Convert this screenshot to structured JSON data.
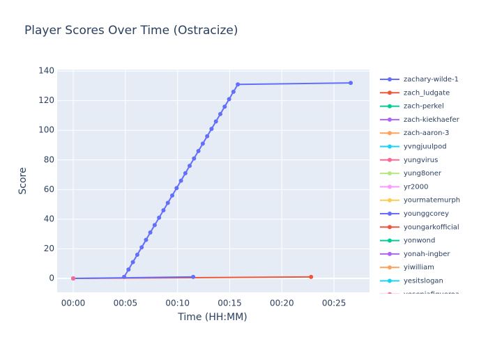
{
  "chart_data": {
    "type": "line",
    "title": "Player Scores Over Time (Ostracize)",
    "x_label": "Time (HH:MM)",
    "y_label": "Score",
    "xlim": [
      -1.54,
      28.4
    ],
    "ylim": [
      -9.4,
      141
    ],
    "xticks": [
      {
        "value": 0,
        "label": "00:00"
      },
      {
        "value": 5,
        "label": "00:05"
      },
      {
        "value": 10,
        "label": "00:10"
      },
      {
        "value": 15,
        "label": "00:15"
      },
      {
        "value": 20,
        "label": "00:20"
      },
      {
        "value": 25,
        "label": "00:25"
      }
    ],
    "yticks": [
      0,
      20,
      40,
      60,
      80,
      100,
      120,
      140
    ],
    "grid": true,
    "legend": "right",
    "series": [
      {
        "name": "zachary-wilde-1",
        "color": "#636efa",
        "x": [
          4.88,
          5.3,
          5.72,
          6.14,
          6.56,
          6.98,
          7.39,
          7.81,
          8.23,
          8.65,
          9.07,
          9.49,
          9.91,
          10.33,
          10.75,
          11.16,
          11.58,
          12.0,
          12.42,
          12.84,
          13.26,
          13.68,
          14.1,
          14.52,
          14.94,
          15.36,
          15.78,
          26.6
        ],
        "values": [
          1,
          6,
          11,
          16,
          21,
          26,
          31,
          36,
          41,
          46,
          51,
          56,
          61,
          66,
          71,
          76,
          81,
          86,
          91,
          96,
          101,
          106,
          111,
          116,
          121,
          126,
          131,
          132
        ]
      },
      {
        "name": "zach_ludgate",
        "color": "#ef553b",
        "x": [
          0,
          22.8
        ],
        "values": [
          0,
          1
        ]
      },
      {
        "name": "zach-perkel",
        "color": "#00cc96",
        "x": [
          0
        ],
        "values": [
          0
        ]
      },
      {
        "name": "zach-kiekhaefer",
        "color": "#ab63fa",
        "x": [
          0
        ],
        "values": [
          0
        ]
      },
      {
        "name": "zach-aaron-3",
        "color": "#ffa15a",
        "x": [
          0
        ],
        "values": [
          0
        ]
      },
      {
        "name": "yvngjuulpod",
        "color": "#19d3f3",
        "x": [
          0
        ],
        "values": [
          0
        ]
      },
      {
        "name": "yungvirus",
        "color": "#ff6692",
        "x": [
          0
        ],
        "values": [
          0
        ]
      },
      {
        "name": "yung8oner",
        "color": "#b6e880",
        "x": [
          0
        ],
        "values": [
          0
        ]
      },
      {
        "name": "yr2000",
        "color": "#ff97ff",
        "x": [
          0
        ],
        "values": [
          0
        ]
      },
      {
        "name": "yourmatemurph",
        "color": "#fecb52",
        "x": [
          0
        ],
        "values": [
          0
        ]
      },
      {
        "name": "younggcorey",
        "color": "#636efa",
        "x": [
          0,
          11.5
        ],
        "values": [
          0,
          1
        ]
      },
      {
        "name": "youngarkofficial",
        "color": "#ef553b",
        "x": [
          0
        ],
        "values": [
          0
        ]
      },
      {
        "name": "yonwond",
        "color": "#00cc96",
        "x": [
          0
        ],
        "values": [
          0
        ]
      },
      {
        "name": "yonah-ingber",
        "color": "#ab63fa",
        "x": [
          0
        ],
        "values": [
          0
        ]
      },
      {
        "name": "yiwilliam",
        "color": "#ffa15a",
        "x": [
          0
        ],
        "values": [
          0
        ]
      },
      {
        "name": "yesitslogan",
        "color": "#19d3f3",
        "x": [
          0
        ],
        "values": [
          0
        ]
      },
      {
        "name": "yesenjafigueroa",
        "color": "#ff6692",
        "x": [
          0
        ],
        "values": [
          0
        ]
      }
    ]
  }
}
